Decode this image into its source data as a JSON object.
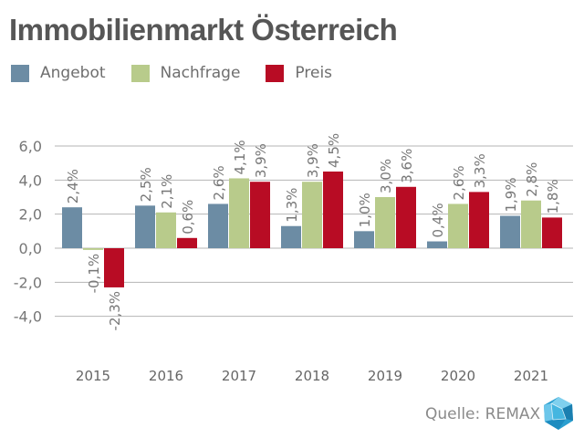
{
  "title": "Immobilienmarkt Österreich",
  "source": "Quelle: REMAX",
  "colors": {
    "Angebot": "#6c8ca4",
    "Nachfrage": "#b8cb8b",
    "Preis": "#b80c24",
    "grid": "#b5b5b5",
    "text": "#777777"
  },
  "chart_data": {
    "type": "bar",
    "title": "Immobilienmarkt Österreich",
    "categories": [
      "2015",
      "2016",
      "2017",
      "2018",
      "2019",
      "2020",
      "2021"
    ],
    "series": [
      {
        "name": "Angebot",
        "values": [
          2.4,
          2.5,
          2.6,
          1.3,
          1.0,
          0.4,
          1.9
        ],
        "labels": [
          "2,4%",
          "2,5%",
          "2,6%",
          "1,3%",
          "1,0%",
          "0,4%",
          "1,9%"
        ]
      },
      {
        "name": "Nachfrage",
        "values": [
          -0.1,
          2.1,
          4.1,
          3.9,
          3.0,
          2.6,
          2.8
        ],
        "labels": [
          "-0,1%",
          "2,1%",
          "4,1%",
          "3,9%",
          "3,0%",
          "2,6%",
          "2,8%"
        ]
      },
      {
        "name": "Preis",
        "values": [
          -2.3,
          0.6,
          3.9,
          4.5,
          3.6,
          3.3,
          1.8
        ],
        "labels": [
          "-2,3%",
          "0,6%",
          "3,9%",
          "4,5%",
          "3,6%",
          "3,3%",
          "1,8%"
        ]
      }
    ],
    "yticks": [
      "6,0",
      "4,0",
      "2,0",
      "0,0",
      "-2,0",
      "-4,0"
    ],
    "ytick_values": [
      6,
      4,
      2,
      0,
      -2,
      -4
    ],
    "ylim": [
      -4,
      6
    ],
    "grid": true,
    "legend": "top-left"
  }
}
